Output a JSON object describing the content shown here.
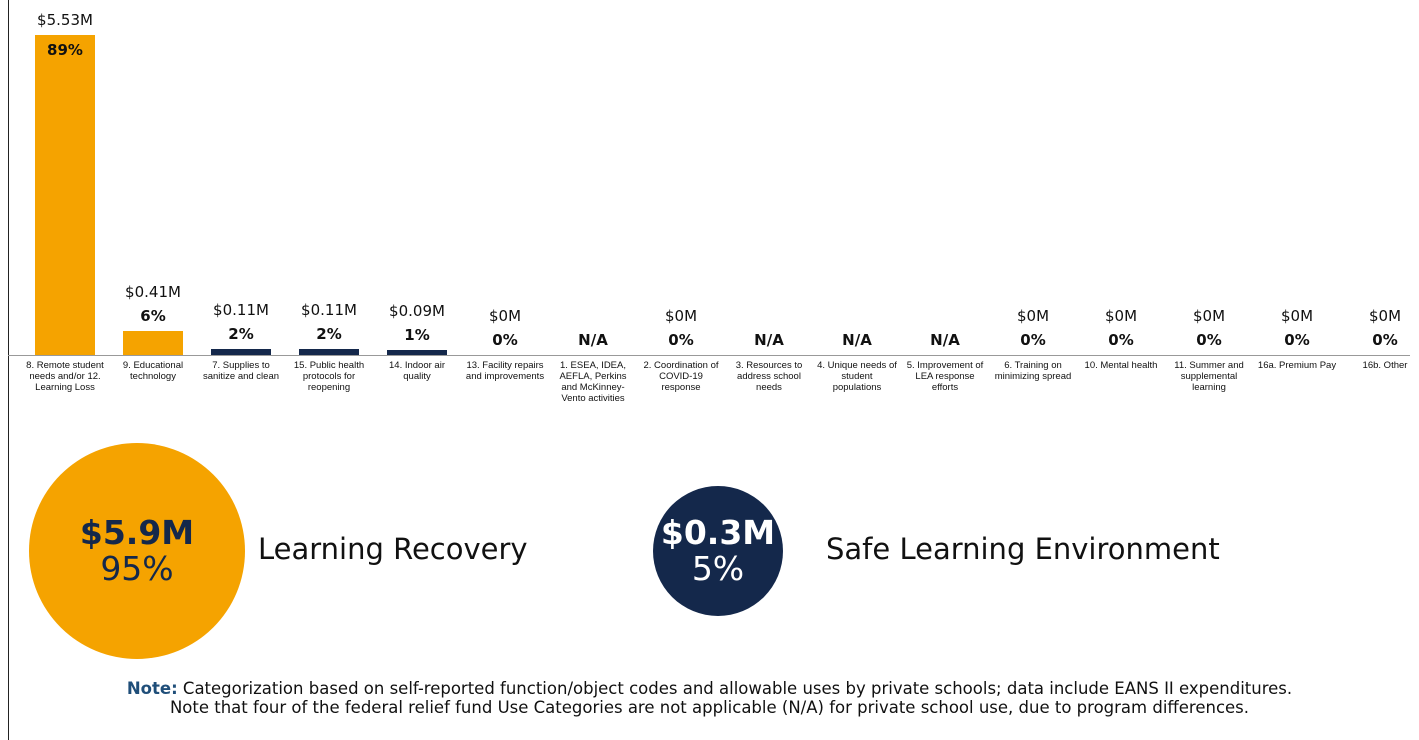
{
  "chart_data": {
    "type": "bar",
    "categories": [
      "8. Remote student needs and/or 12. Learning Loss",
      "9. Educational technology",
      "7. Supplies to sanitize and clean",
      "15. Public health protocols for reopening",
      "14. Indoor air quality",
      "13. Facility repairs and improvements",
      "1. ESEA, IDEA, AEFLA, Perkins and McKinney-Vento activities",
      "2. Coordination of COVID-19 response",
      "3. Resources to address school needs",
      "4. Unique needs of student populations",
      "5. Improvement of LEA response efforts",
      "6. Training on minimizing spread",
      "10. Mental health",
      "11. Summer and supplemental learning",
      "16a. Premium Pay",
      "16b. Other"
    ],
    "values": [
      5.53,
      0.41,
      0.11,
      0.11,
      0.09,
      0,
      null,
      0,
      null,
      null,
      null,
      0,
      0,
      0,
      0,
      0
    ],
    "value_labels": [
      "$5.53M",
      "$0.41M",
      "$0.11M",
      "$0.11M",
      "$0.09M",
      "$0M",
      null,
      "$0M",
      null,
      null,
      null,
      "$0M",
      "$0M",
      "$0M",
      "$0M",
      "$0M"
    ],
    "shares": [
      89,
      6,
      2,
      2,
      1,
      0,
      null,
      0,
      null,
      null,
      null,
      0,
      0,
      0,
      0,
      0
    ],
    "share_labels": [
      "89%",
      "6%",
      "2%",
      "2%",
      "1%",
      "0%",
      "N/A",
      "0%",
      "N/A",
      "N/A",
      "N/A",
      "0%",
      "0%",
      "0%",
      "0%",
      "0%"
    ],
    "colors": [
      "#f5a300",
      "#f5a300",
      "#14284b",
      "#14284b",
      "#14284b",
      "#14284b",
      "#14284b",
      "#14284b",
      "#14284b",
      "#14284b",
      "#14284b",
      "#14284b",
      "#14284b",
      "#14284b",
      "#14284b",
      "#14284b"
    ]
  },
  "summary": [
    {
      "amount": "$5.9M",
      "share": "95%",
      "label": "Learning Recovery",
      "color": "#f5a300",
      "text_color": "#14284b"
    },
    {
      "amount": "$0.3M",
      "share": "5%",
      "label": "Safe Learning Environment",
      "color": "#14284b",
      "text_color": "#ffffff"
    }
  ],
  "note": {
    "label": "Note:",
    "lines": [
      "Categorization based on self-reported function/object codes and allowable uses by private schools; data include EANS II expenditures.",
      "Note that four of the federal relief fund Use Categories are not applicable (N/A) for private school use, due to program differences."
    ]
  }
}
